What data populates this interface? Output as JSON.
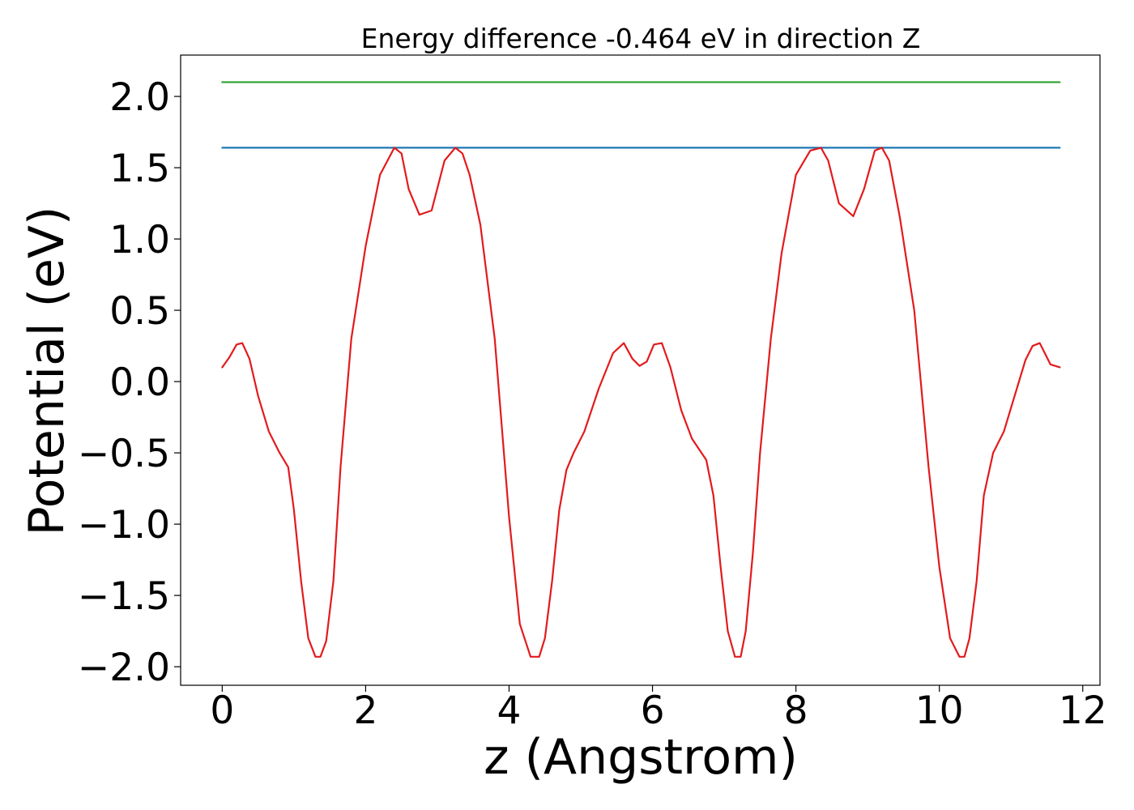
{
  "chart_data": {
    "type": "line",
    "title": "Energy difference -0.464 eV in direction Z",
    "xlabel": "z (Angstrom)",
    "ylabel": "Potential (eV)",
    "xlim": [
      -0.58,
      12.24
    ],
    "ylim": [
      -2.13,
      2.29
    ],
    "xticks": [
      0,
      2,
      4,
      6,
      8,
      10,
      12
    ],
    "yticks": [
      -2.0,
      -1.5,
      -1.0,
      -0.5,
      0.0,
      0.5,
      1.0,
      1.5,
      2.0
    ],
    "xtick_labels": [
      "0",
      "2",
      "4",
      "6",
      "8",
      "10",
      "12"
    ],
    "ytick_labels": [
      "−2.0",
      "−1.5",
      "−1.0",
      "−0.5",
      "0.0",
      "0.5",
      "1.0",
      "1.5",
      "2.0"
    ],
    "grid": false,
    "legend": "none",
    "series": [
      {
        "color": "#2ca02c",
        "x": [
          0,
          11.68
        ],
        "y": [
          2.1,
          2.1
        ]
      },
      {
        "color": "#1f77b4",
        "x": [
          0,
          11.68
        ],
        "y": [
          1.64,
          1.64
        ]
      },
      {
        "color": "#e31a1c",
        "x": [
          0.0,
          0.1,
          0.2,
          0.28,
          0.38,
          0.5,
          0.65,
          0.8,
          0.92,
          1.0,
          1.1,
          1.2,
          1.3,
          1.37,
          1.45,
          1.55,
          1.65,
          1.8,
          2.0,
          2.2,
          2.4,
          2.5,
          2.6,
          2.75,
          2.92,
          3.1,
          3.25,
          3.35,
          3.45,
          3.6,
          3.8,
          4.0,
          4.15,
          4.3,
          4.42,
          4.5,
          4.6,
          4.7,
          4.8,
          4.9,
          5.05,
          5.25,
          5.45,
          5.6,
          5.72,
          5.82,
          5.92,
          6.02,
          6.13,
          6.25,
          6.4,
          6.55,
          6.75,
          6.85,
          6.95,
          7.05,
          7.15,
          7.23,
          7.3,
          7.4,
          7.5,
          7.65,
          7.8,
          8.0,
          8.2,
          8.35,
          8.45,
          8.6,
          8.8,
          8.95,
          9.1,
          9.2,
          9.3,
          9.45,
          9.65,
          9.85,
          10.0,
          10.15,
          10.28,
          10.35,
          10.42,
          10.52,
          10.62,
          10.75,
          10.9,
          11.05,
          11.2,
          11.3,
          11.4,
          11.47,
          11.55,
          11.68
        ],
        "y": [
          0.1,
          0.17,
          0.26,
          0.27,
          0.16,
          -0.1,
          -0.35,
          -0.5,
          -0.6,
          -0.9,
          -1.4,
          -1.8,
          -1.93,
          -1.93,
          -1.82,
          -1.4,
          -0.6,
          0.3,
          0.95,
          1.45,
          1.64,
          1.6,
          1.35,
          1.17,
          1.2,
          1.55,
          1.64,
          1.6,
          1.45,
          1.1,
          0.3,
          -0.95,
          -1.7,
          -1.93,
          -1.93,
          -1.8,
          -1.4,
          -0.9,
          -0.62,
          -0.5,
          -0.35,
          -0.05,
          0.2,
          0.27,
          0.16,
          0.11,
          0.14,
          0.26,
          0.27,
          0.1,
          -0.2,
          -0.4,
          -0.55,
          -0.8,
          -1.3,
          -1.75,
          -1.93,
          -1.93,
          -1.75,
          -1.2,
          -0.5,
          0.3,
          0.9,
          1.45,
          1.62,
          1.64,
          1.55,
          1.25,
          1.16,
          1.35,
          1.62,
          1.64,
          1.55,
          1.15,
          0.5,
          -0.6,
          -1.3,
          -1.8,
          -1.93,
          -1.93,
          -1.8,
          -1.4,
          -0.8,
          -0.5,
          -0.35,
          -0.1,
          0.15,
          0.25,
          0.27,
          0.2,
          0.12,
          0.1
        ]
      }
    ]
  }
}
